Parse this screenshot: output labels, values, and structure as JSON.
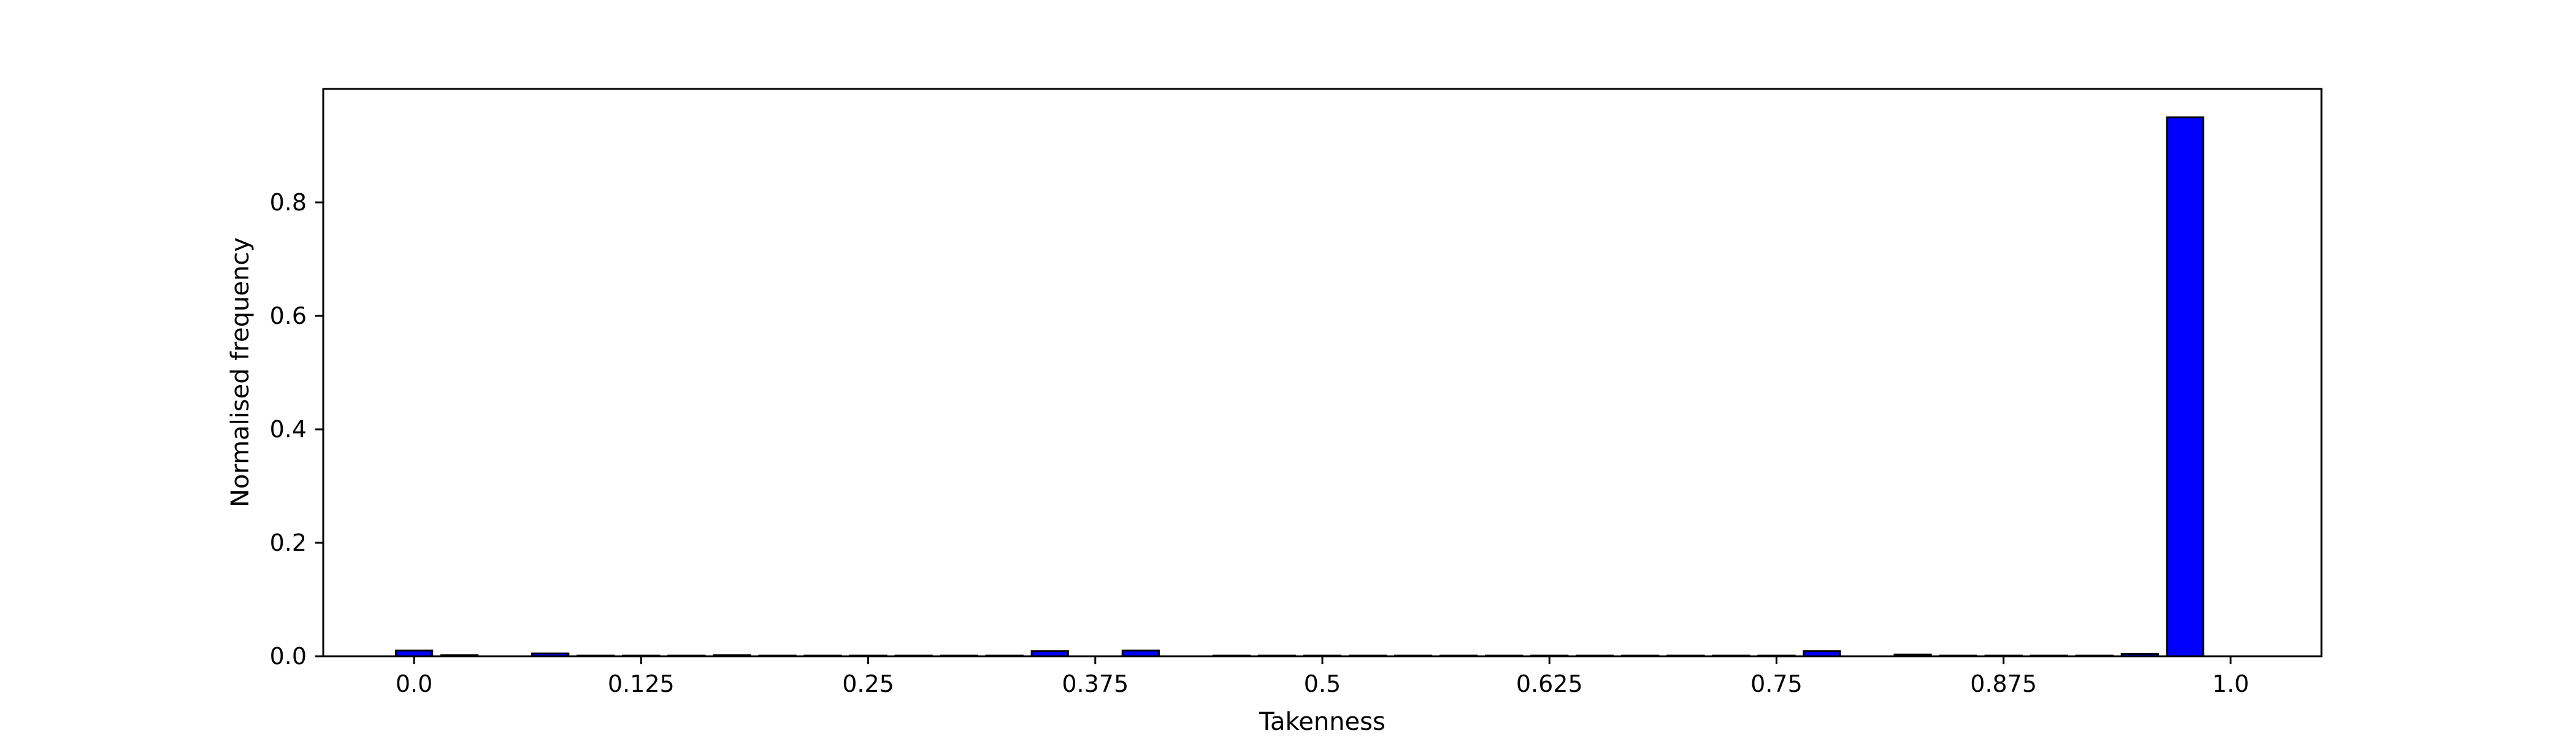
{
  "chart_data": {
    "type": "bar",
    "xlabel": "Takenness",
    "ylabel": "Normalised frequency",
    "xlim": [
      -0.05,
      1.05
    ],
    "ylim": [
      0.0,
      1.0
    ],
    "grid": false,
    "bar_color": "#0000ff",
    "edge_color": "#000000",
    "x_ticks": [
      {
        "value": 0.0,
        "label": "0.0"
      },
      {
        "value": 0.125,
        "label": "0.125"
      },
      {
        "value": 0.25,
        "label": "0.25"
      },
      {
        "value": 0.375,
        "label": "0.375"
      },
      {
        "value": 0.5,
        "label": "0.5"
      },
      {
        "value": 0.625,
        "label": "0.625"
      },
      {
        "value": 0.75,
        "label": "0.75"
      },
      {
        "value": 0.875,
        "label": "0.875"
      },
      {
        "value": 1.0,
        "label": "1.0"
      }
    ],
    "y_ticks": [
      {
        "value": 0.0,
        "label": "0.0"
      },
      {
        "value": 0.2,
        "label": "0.2"
      },
      {
        "value": 0.4,
        "label": "0.4"
      },
      {
        "value": 0.6,
        "label": "0.6"
      },
      {
        "value": 0.8,
        "label": "0.8"
      }
    ],
    "bin_width": 0.02,
    "bars": [
      {
        "x": 0.0,
        "y": 0.01
      },
      {
        "x": 0.025,
        "y": 0.002
      },
      {
        "x": 0.075,
        "y": 0.005
      },
      {
        "x": 0.1,
        "y": 0.001
      },
      {
        "x": 0.125,
        "y": 0.001
      },
      {
        "x": 0.15,
        "y": 0.001
      },
      {
        "x": 0.175,
        "y": 0.002
      },
      {
        "x": 0.2,
        "y": 0.001
      },
      {
        "x": 0.225,
        "y": 0.001
      },
      {
        "x": 0.25,
        "y": 0.001
      },
      {
        "x": 0.275,
        "y": 0.001
      },
      {
        "x": 0.3,
        "y": 0.001
      },
      {
        "x": 0.325,
        "y": 0.001
      },
      {
        "x": 0.35,
        "y": 0.009
      },
      {
        "x": 0.4,
        "y": 0.01
      },
      {
        "x": 0.45,
        "y": 0.001
      },
      {
        "x": 0.475,
        "y": 0.001
      },
      {
        "x": 0.5,
        "y": 0.001
      },
      {
        "x": 0.525,
        "y": 0.001
      },
      {
        "x": 0.55,
        "y": 0.001
      },
      {
        "x": 0.575,
        "y": 0.001
      },
      {
        "x": 0.6,
        "y": 0.001
      },
      {
        "x": 0.625,
        "y": 0.001
      },
      {
        "x": 0.65,
        "y": 0.001
      },
      {
        "x": 0.675,
        "y": 0.001
      },
      {
        "x": 0.7,
        "y": 0.001
      },
      {
        "x": 0.725,
        "y": 0.001
      },
      {
        "x": 0.75,
        "y": 0.001
      },
      {
        "x": 0.775,
        "y": 0.009
      },
      {
        "x": 0.825,
        "y": 0.003
      },
      {
        "x": 0.85,
        "y": 0.001
      },
      {
        "x": 0.875,
        "y": 0.001
      },
      {
        "x": 0.9,
        "y": 0.001
      },
      {
        "x": 0.925,
        "y": 0.001
      },
      {
        "x": 0.95,
        "y": 0.004
      },
      {
        "x": 0.975,
        "y": 0.95
      }
    ]
  }
}
